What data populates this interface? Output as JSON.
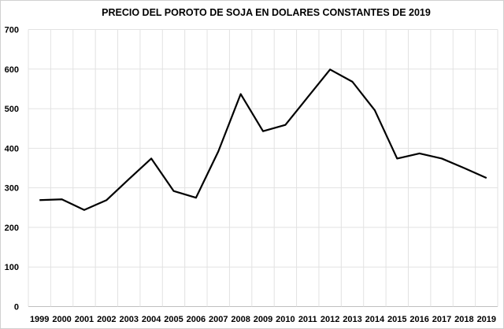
{
  "chart_data": {
    "type": "line",
    "title": "PRECIO DEL POROTO DE SOJA EN DOLARES CONSTANTES  DE 2019",
    "xlabel": "",
    "ylabel": "",
    "categories": [
      "1999",
      "2000",
      "2001",
      "2002",
      "2003",
      "2004",
      "2005",
      "2006",
      "2007",
      "2008",
      "2009",
      "2010",
      "2011",
      "2012",
      "2013",
      "2014",
      "2015",
      "2016",
      "2017",
      "2018",
      "2019"
    ],
    "series": [
      {
        "name": "Precio",
        "color": "#000000",
        "values": [
          269,
          271,
          244,
          269,
          322,
          374,
          292,
          275,
          392,
          537,
          443,
          459,
          529,
          599,
          568,
          496,
          374,
          387,
          374,
          350,
          325
        ]
      }
    ],
    "ylim": [
      0,
      700
    ],
    "yticks": [
      "0",
      "100",
      "200",
      "300",
      "400",
      "500",
      "600",
      "700"
    ],
    "grid": true,
    "legend": "none"
  }
}
